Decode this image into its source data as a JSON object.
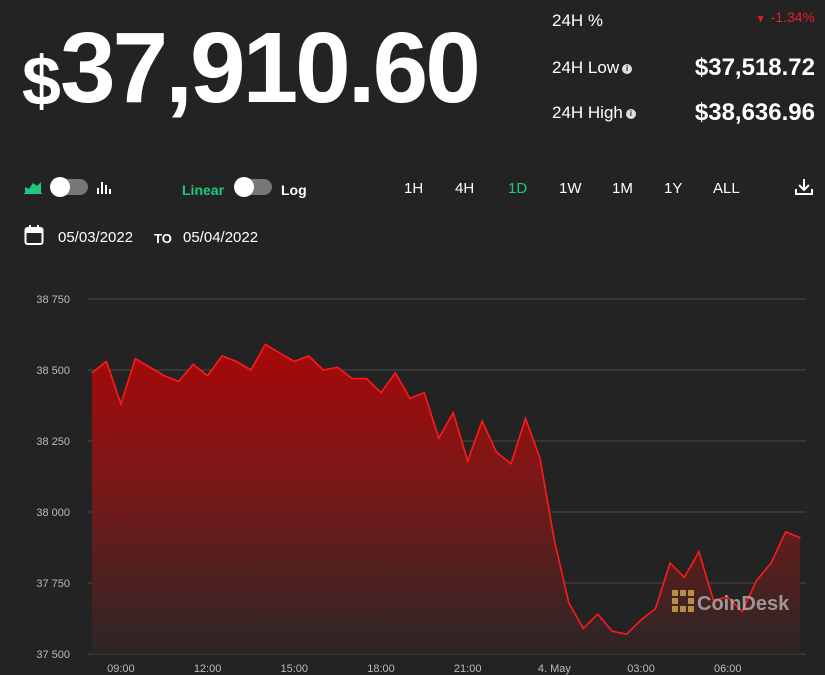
{
  "header": {
    "currency_symbol": "$",
    "price": "37,910.60",
    "pct_label": "24H %",
    "pct_value": "-1.34%",
    "low_label": "24H Low",
    "low_value": "$37,518.72",
    "high_label": "24H High",
    "high_value": "$38,636.96"
  },
  "controls": {
    "linear_label": "Linear",
    "log_label": "Log",
    "ranges": [
      "1H",
      "4H",
      "1D",
      "1W",
      "1M",
      "1Y",
      "ALL"
    ],
    "active_range": "1D",
    "date_from": "05/03/2022",
    "date_to_label": "TO",
    "date_to": "05/04/2022"
  },
  "colors": {
    "accent_green": "#1ec97f",
    "negative_red": "#e8202a",
    "line_red": "#ff1a1a",
    "background": "#232323"
  },
  "watermark": "CoinDesk",
  "chart_data": {
    "type": "area",
    "x_tick_labels": [
      "09:00",
      "12:00",
      "15:00",
      "18:00",
      "21:00",
      "4. May",
      "03:00",
      "06:00"
    ],
    "y_tick_labels": [
      "38 750",
      "38 500",
      "38 250",
      "38 000",
      "37 750",
      "37 500"
    ],
    "ylim": [
      37500,
      38750
    ],
    "grid": true,
    "x_hours": [
      0,
      0.5,
      1,
      1.5,
      2,
      2.5,
      3,
      3.5,
      4,
      4.5,
      5,
      5.5,
      6,
      6.5,
      7,
      7.5,
      8,
      8.5,
      9,
      9.5,
      10,
      10.5,
      11,
      11.5,
      12,
      12.5,
      13,
      13.5,
      14,
      14.5,
      15,
      15.5,
      16,
      16.5,
      17,
      17.5,
      18,
      18.5,
      19,
      19.5,
      20,
      20.5,
      21,
      21.5,
      22,
      22.5,
      23,
      23.5,
      24,
      24.5
    ],
    "x_origin_label": "05/03/2022 08:00",
    "values": [
      38490,
      38530,
      38380,
      38540,
      38510,
      38480,
      38460,
      38520,
      38480,
      38550,
      38530,
      38500,
      38590,
      38560,
      38530,
      38550,
      38500,
      38510,
      38470,
      38470,
      38420,
      38490,
      38400,
      38420,
      38260,
      38350,
      38180,
      38320,
      38210,
      38170,
      38330,
      38190,
      37900,
      37680,
      37590,
      37640,
      37580,
      37570,
      37620,
      37660,
      37820,
      37770,
      37860,
      37690,
      37700,
      37650,
      37760,
      37820,
      37930,
      37910
    ]
  }
}
